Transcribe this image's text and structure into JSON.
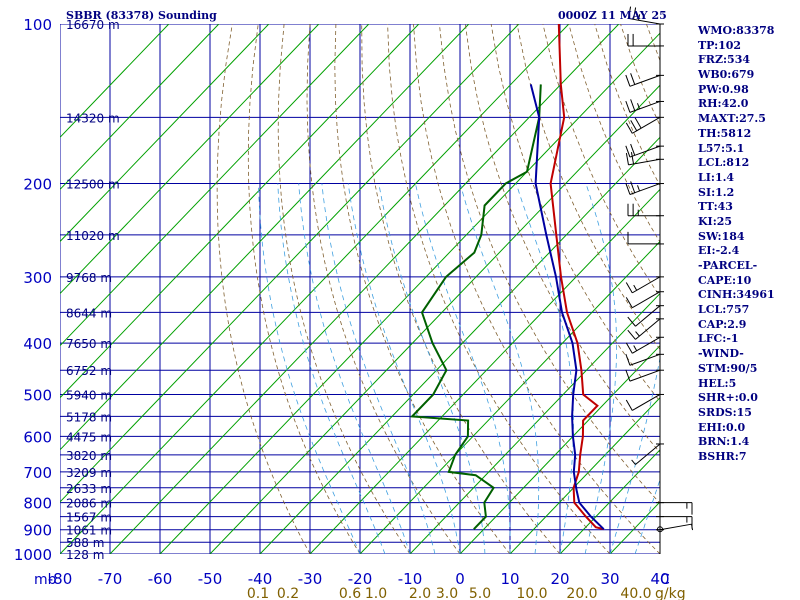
{
  "header": {
    "title": "SBBR (83378) Sounding",
    "time": "0000Z 11 MAY 25"
  },
  "indices": [
    "WMO:83378",
    "TP:102",
    "FRZ:534",
    "WB0:679",
    "PW:0.98",
    "RH:42.0",
    "MAXT:27.5",
    "TH:5812",
    "L57:5.1",
    "LCL:812",
    "LI:1.4",
    "SI:1.2",
    "TT:43",
    "KI:25",
    "SW:184",
    "EI:-2.4",
    "-PARCEL-",
    "CAPE:10",
    "CINH:34961",
    "LCL:757",
    "CAP:2.9",
    "LFC:-1",
    "-WIND-",
    "STM:90/5",
    "HEL:5",
    "SHR+:0.0",
    "SRDS:15",
    "EHI:0.0",
    "BRN:1.4",
    "BSHR:7"
  ],
  "chart_data": {
    "type": "line",
    "title": "SBBR (83378) Sounding",
    "subtitle": "0000Z 11 MAY 25",
    "xlabel": "",
    "ylabel": "mb",
    "x_unit_label": "C",
    "mixing_ratio_unit": "g/kg",
    "xlim": [
      -80,
      40
    ],
    "ylim": [
      1000,
      100
    ],
    "y_scale": "log",
    "grid": true,
    "pressure_ticks": [
      {
        "p": 100,
        "label": "100"
      },
      {
        "p": 200,
        "label": "200"
      },
      {
        "p": 300,
        "label": "300"
      },
      {
        "p": 400,
        "label": "400"
      },
      {
        "p": 500,
        "label": "500"
      },
      {
        "p": 600,
        "label": "600"
      },
      {
        "p": 700,
        "label": "700"
      },
      {
        "p": 800,
        "label": "800"
      },
      {
        "p": 900,
        "label": "900"
      },
      {
        "p": 1000,
        "label": "1000"
      }
    ],
    "temp_ticks": [
      {
        "t": -80,
        "label": "-80"
      },
      {
        "t": -70,
        "label": "-70"
      },
      {
        "t": -60,
        "label": "-60"
      },
      {
        "t": -50,
        "label": "-50"
      },
      {
        "t": -40,
        "label": "-40"
      },
      {
        "t": -30,
        "label": "-30"
      },
      {
        "t": -20,
        "label": "-20"
      },
      {
        "t": -10,
        "label": "-10"
      },
      {
        "t": 0,
        "label": "0"
      },
      {
        "t": 10,
        "label": "10"
      },
      {
        "t": 20,
        "label": "20"
      },
      {
        "t": 30,
        "label": "30"
      },
      {
        "t": 40,
        "label": "40"
      }
    ],
    "mixing_ratio_labels": [
      "0.1",
      "0.2",
      "0.6",
      "1.0",
      "2.0",
      "3.0",
      "5.0",
      "10.0",
      "20.0",
      "40.0"
    ],
    "height_labels": [
      {
        "p": 100,
        "label": "16670 m"
      },
      {
        "p": 150,
        "label": "14320 m"
      },
      {
        "p": 200,
        "label": "12500 m"
      },
      {
        "p": 250,
        "label": "11020 m"
      },
      {
        "p": 300,
        "label": "9768 m"
      },
      {
        "p": 350,
        "label": "8644 m"
      },
      {
        "p": 400,
        "label": "7650 m"
      },
      {
        "p": 450,
        "label": "6752 m"
      },
      {
        "p": 500,
        "label": "5940 m"
      },
      {
        "p": 550,
        "label": "5178 m"
      },
      {
        "p": 600,
        "label": "4475 m"
      },
      {
        "p": 650,
        "label": "3820 m"
      },
      {
        "p": 700,
        "label": "3209 m"
      },
      {
        "p": 750,
        "label": "2633 m"
      },
      {
        "p": 800,
        "label": "2086 m"
      },
      {
        "p": 850,
        "label": "1567 m"
      },
      {
        "p": 900,
        "label": "1061 m"
      },
      {
        "p": 950,
        "label": "588 m"
      },
      {
        "p": 1000,
        "label": "128 m"
      }
    ],
    "series": [
      {
        "key": "temperature",
        "color": "#c00000",
        "points": [
          [
            898,
            24
          ],
          [
            890,
            22
          ],
          [
            850,
            18
          ],
          [
            800,
            13
          ],
          [
            750,
            10
          ],
          [
            700,
            8
          ],
          [
            650,
            5
          ],
          [
            600,
            2
          ],
          [
            560,
            -1
          ],
          [
            525,
            -1
          ],
          [
            500,
            -6
          ],
          [
            450,
            -11
          ],
          [
            400,
            -17
          ],
          [
            350,
            -25
          ],
          [
            300,
            -33
          ],
          [
            250,
            -42
          ],
          [
            200,
            -53
          ],
          [
            150,
            -63
          ],
          [
            130,
            -70
          ],
          [
            100,
            -82
          ]
        ]
      },
      {
        "key": "dewpoint",
        "color": "#006000",
        "points": [
          [
            898,
            -2
          ],
          [
            850,
            -2
          ],
          [
            800,
            -5
          ],
          [
            750,
            -6
          ],
          [
            710,
            -12
          ],
          [
            700,
            -18
          ],
          [
            650,
            -20
          ],
          [
            600,
            -21
          ],
          [
            560,
            -24
          ],
          [
            550,
            -36
          ],
          [
            500,
            -36
          ],
          [
            450,
            -38
          ],
          [
            400,
            -46
          ],
          [
            350,
            -54
          ],
          [
            300,
            -56
          ],
          [
            270,
            -55
          ],
          [
            250,
            -57
          ],
          [
            220,
            -62
          ],
          [
            200,
            -62
          ],
          [
            190,
            -60
          ],
          [
            150,
            -68
          ],
          [
            130,
            -74
          ]
        ]
      },
      {
        "key": "parcel",
        "color": "#0000a0",
        "points": [
          [
            898,
            24
          ],
          [
            850,
            19
          ],
          [
            800,
            14
          ],
          [
            757,
            11
          ],
          [
            700,
            7
          ],
          [
            650,
            4
          ],
          [
            600,
            0
          ],
          [
            550,
            -4
          ],
          [
            500,
            -8
          ],
          [
            450,
            -12
          ],
          [
            400,
            -18
          ],
          [
            350,
            -26
          ],
          [
            300,
            -34
          ],
          [
            250,
            -44
          ],
          [
            200,
            -56
          ],
          [
            150,
            -68
          ],
          [
            130,
            -76
          ]
        ]
      }
    ],
    "wind_barbs": [
      {
        "p": 100,
        "dir": 280,
        "spd": 25
      },
      {
        "p": 110,
        "dir": 270,
        "spd": 20
      },
      {
        "p": 125,
        "dir": 250,
        "spd": 20
      },
      {
        "p": 140,
        "dir": 250,
        "spd": 25
      },
      {
        "p": 150,
        "dir": 240,
        "spd": 30
      },
      {
        "p": 170,
        "dir": 250,
        "spd": 20
      },
      {
        "p": 180,
        "dir": 260,
        "spd": 20
      },
      {
        "p": 200,
        "dir": 250,
        "spd": 25
      },
      {
        "p": 230,
        "dir": 270,
        "spd": 25
      },
      {
        "p": 260,
        "dir": 270,
        "spd": 10
      },
      {
        "p": 300,
        "dir": 240,
        "spd": 15
      },
      {
        "p": 320,
        "dir": 240,
        "spd": 10
      },
      {
        "p": 340,
        "dir": 230,
        "spd": 10
      },
      {
        "p": 360,
        "dir": 230,
        "spd": 15
      },
      {
        "p": 390,
        "dir": 240,
        "spd": 15
      },
      {
        "p": 420,
        "dir": 250,
        "spd": 10
      },
      {
        "p": 450,
        "dir": 250,
        "spd": 10
      },
      {
        "p": 500,
        "dir": 240,
        "spd": 10
      },
      {
        "p": 620,
        "dir": 230,
        "spd": 5
      },
      {
        "p": 800,
        "dir": 90,
        "spd": 15
      },
      {
        "p": 850,
        "dir": 90,
        "spd": 15
      },
      {
        "p": 900,
        "dir": 80,
        "spd": 5
      }
    ]
  }
}
